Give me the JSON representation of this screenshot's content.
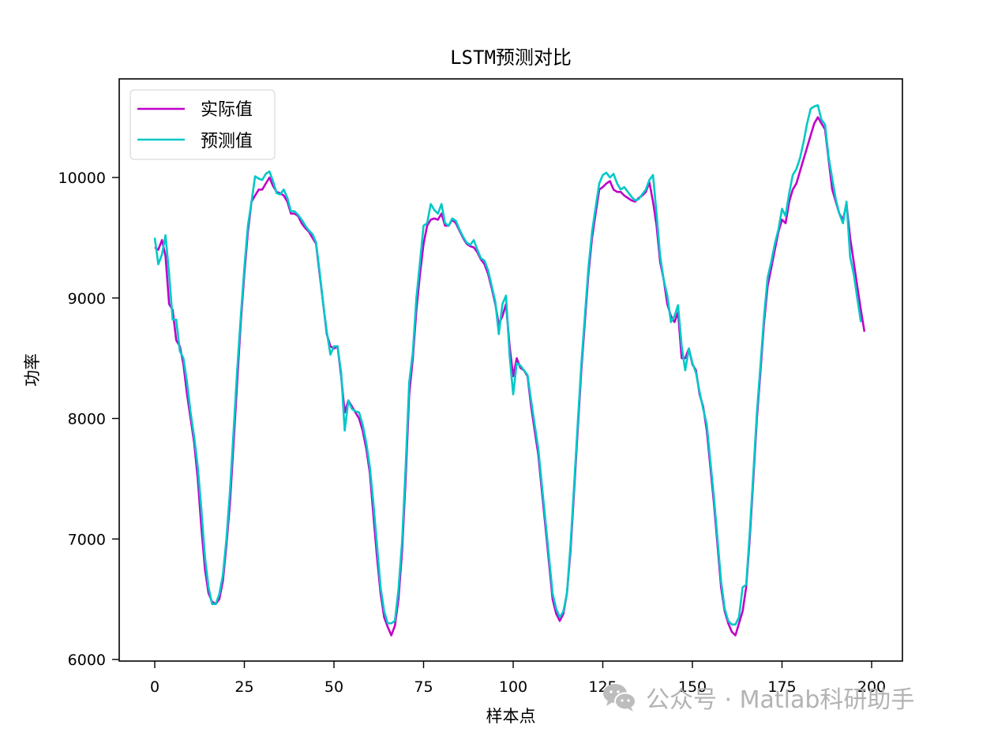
{
  "chart_data": {
    "type": "line",
    "title": "LSTM预测对比",
    "xlabel": "样本点",
    "ylabel": "功率",
    "xlim": [
      -9,
      209
    ],
    "ylim": [
      5985,
      10820
    ],
    "xticks": [
      0,
      25,
      50,
      75,
      100,
      125,
      150,
      175,
      200
    ],
    "yticks": [
      6000,
      7000,
      8000,
      9000,
      10000
    ],
    "grid": false,
    "legend_position": "upper left",
    "x": "0..199 (index)",
    "series": [
      {
        "name": "实际值",
        "color": "#c000c8",
        "values": [
          9420,
          9400,
          9480,
          9350,
          8950,
          8900,
          8650,
          8600,
          8450,
          8200,
          8000,
          7800,
          7500,
          7100,
          6750,
          6550,
          6480,
          6460,
          6500,
          6650,
          6950,
          7300,
          7800,
          8300,
          8800,
          9200,
          9550,
          9800,
          9850,
          9900,
          9900,
          9950,
          10000,
          9930,
          9880,
          9870,
          9850,
          9800,
          9700,
          9700,
          9680,
          9620,
          9580,
          9550,
          9500,
          9450,
          9200,
          8950,
          8700,
          8600,
          8580,
          8600,
          8350,
          8050,
          8150,
          8100,
          8050,
          8000,
          7900,
          7750,
          7550,
          7200,
          6850,
          6550,
          6350,
          6270,
          6200,
          6280,
          6500,
          6900,
          7500,
          8200,
          8500,
          8900,
          9200,
          9450,
          9600,
          9650,
          9660,
          9650,
          9700,
          9600,
          9600,
          9650,
          9620,
          9560,
          9500,
          9450,
          9430,
          9420,
          9380,
          9320,
          9280,
          9200,
          9080,
          8950,
          8780,
          8850,
          8950,
          8600,
          8350,
          8500,
          8420,
          8400,
          8350,
          8100,
          7900,
          7700,
          7400,
          7100,
          6800,
          6500,
          6380,
          6320,
          6380,
          6550,
          6900,
          7400,
          7900,
          8400,
          8800,
          9200,
          9500,
          9700,
          9900,
          9920,
          9950,
          9970,
          9900,
          9880,
          9880,
          9850,
          9830,
          9810,
          9800,
          9830,
          9850,
          9880,
          9960,
          9800,
          9600,
          9300,
          9150,
          8950,
          8850,
          8800,
          8880,
          8500,
          8500,
          8580,
          8450,
          8400,
          8200,
          8100,
          7900,
          7600,
          7300,
          6950,
          6600,
          6400,
          6300,
          6230,
          6200,
          6300,
          6400,
          6600,
          7000,
          7500,
          8000,
          8400,
          8800,
          9100,
          9250,
          9400,
          9550,
          9650,
          9620,
          9800,
          9900,
          9950,
          10050,
          10150,
          10250,
          10350,
          10450,
          10500,
          10450,
          10400,
          10150,
          9900,
          9800,
          9700,
          9650,
          9780,
          9500,
          9300,
          9100,
          8900,
          8720
        ]
      },
      {
        "name": "预测值",
        "color": "#00c8c8",
        "values": [
          9500,
          9280,
          9360,
          9520,
          9200,
          8820,
          8820,
          8560,
          8500,
          8300,
          8050,
          7850,
          7600,
          7250,
          6850,
          6600,
          6460,
          6460,
          6540,
          6700,
          7000,
          7400,
          7900,
          8400,
          8850,
          9250,
          9600,
          9800,
          10010,
          9990,
          9980,
          10030,
          10050,
          9970,
          9870,
          9860,
          9900,
          9830,
          9720,
          9720,
          9690,
          9650,
          9600,
          9560,
          9530,
          9460,
          9220,
          8950,
          8720,
          8530,
          8600,
          8600,
          8380,
          7900,
          8150,
          8080,
          8060,
          8050,
          7950,
          7800,
          7600,
          7300,
          6950,
          6600,
          6400,
          6300,
          6300,
          6320,
          6580,
          6980,
          7600,
          8300,
          8550,
          9000,
          9300,
          9600,
          9620,
          9780,
          9730,
          9700,
          9780,
          9620,
          9600,
          9660,
          9640,
          9570,
          9510,
          9460,
          9440,
          9480,
          9400,
          9330,
          9310,
          9230,
          9100,
          8970,
          8700,
          8950,
          9020,
          8520,
          8200,
          8460,
          8440,
          8400,
          8360,
          8150,
          7950,
          7750,
          7450,
          7150,
          6850,
          6550,
          6420,
          6350,
          6400,
          6550,
          6950,
          7450,
          7950,
          8450,
          8850,
          9250,
          9550,
          9750,
          9950,
          10020,
          10040,
          10000,
          10030,
          9950,
          9900,
          9920,
          9880,
          9840,
          9810,
          9820,
          9860,
          9900,
          9980,
          10020,
          9700,
          9350,
          9150,
          9020,
          8800,
          8850,
          8940,
          8600,
          8400,
          8580,
          8460,
          8380,
          8220,
          8080,
          7950,
          7650,
          7350,
          7000,
          6650,
          6420,
          6320,
          6290,
          6290,
          6350,
          6600,
          6620,
          7050,
          7550,
          8050,
          8450,
          8850,
          9170,
          9300,
          9450,
          9570,
          9740,
          9680,
          9870,
          10020,
          10070,
          10160,
          10290,
          10450,
          10570,
          10590,
          10600,
          10480,
          10440,
          10170,
          9990,
          9820,
          9700,
          9620,
          9800,
          9340,
          9200,
          9000,
          8800
        ]
      }
    ]
  },
  "legend": {
    "items": [
      {
        "label": "实际值",
        "color": "#c000c8"
      },
      {
        "label": "预测值",
        "color": "#00c8c8"
      }
    ]
  },
  "watermark": {
    "icon": "wechat-icon",
    "text": "公众号 · Matlab科研助手"
  }
}
